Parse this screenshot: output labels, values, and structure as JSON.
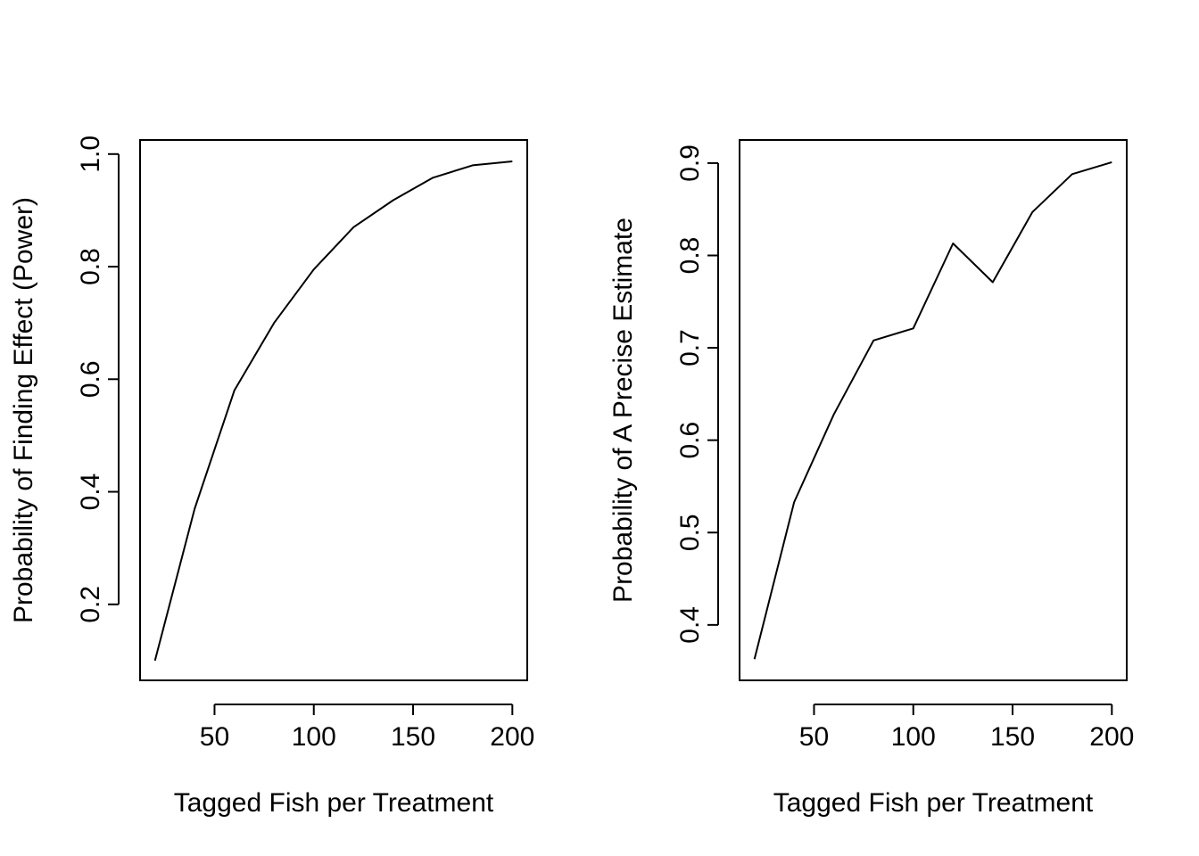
{
  "chart_data": [
    {
      "type": "line",
      "title": "",
      "xlabel": "Tagged Fish per Treatment",
      "ylabel": "Probability of Finding Effect (Power)",
      "xlim": [
        12.5,
        207.5
      ],
      "ylim": [
        0.065,
        1.025
      ],
      "xticks": [
        50,
        100,
        150,
        200
      ],
      "yticks": [
        0.2,
        0.4,
        0.6,
        0.8,
        1.0
      ],
      "ytick_labels": [
        "0.2",
        "0.4",
        "0.6",
        "0.8",
        "1.0"
      ],
      "grid": false,
      "x": [
        20,
        40,
        60,
        80,
        100,
        120,
        140,
        160,
        180,
        200
      ],
      "series": [
        {
          "values": [
            0.1,
            0.37,
            0.58,
            0.7,
            0.795,
            0.87,
            0.918,
            0.958,
            0.98,
            0.987
          ]
        }
      ]
    },
    {
      "type": "line",
      "title": "",
      "xlabel": "Tagged Fish per Treatment",
      "ylabel": "Probability of A Precise Estimate",
      "xlim": [
        12.5,
        207.5
      ],
      "ylim": [
        0.34,
        0.925
      ],
      "xticks": [
        50,
        100,
        150,
        200
      ],
      "yticks": [
        0.4,
        0.5,
        0.6,
        0.7,
        0.8,
        0.9
      ],
      "ytick_labels": [
        "0.4",
        "0.5",
        "0.6",
        "0.7",
        "0.8",
        "0.9"
      ],
      "grid": false,
      "x": [
        20,
        40,
        60,
        80,
        100,
        120,
        140,
        160,
        180,
        200
      ],
      "series": [
        {
          "values": [
            0.363,
            0.533,
            0.628,
            0.708,
            0.721,
            0.813,
            0.771,
            0.847,
            0.888,
            0.901
          ]
        }
      ]
    }
  ]
}
